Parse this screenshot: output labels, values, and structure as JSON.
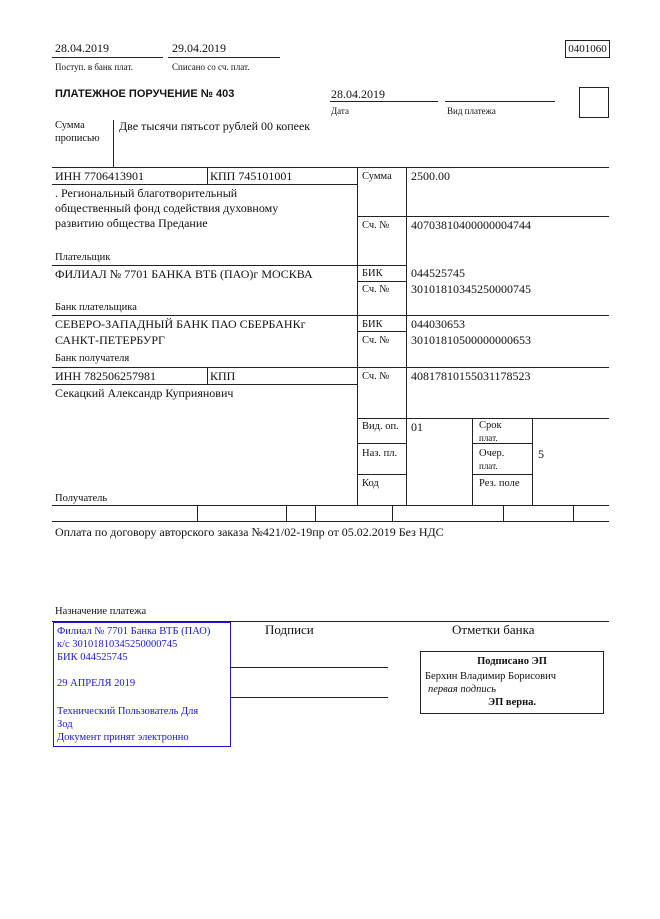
{
  "header": {
    "received_date": "28.04.2019",
    "received_label": "Поступ. в банк плат.",
    "debited_date": "29.04.2019",
    "debited_label": "Списано со сч. плат.",
    "form_code": "0401060"
  },
  "title": "ПЛАТЕЖНОЕ ПОРУЧЕНИЕ № 403",
  "date": {
    "value": "28.04.2019",
    "label": "Дата"
  },
  "payment_type": {
    "value": "",
    "label": "Вид платежа"
  },
  "amount_words": {
    "label_1": "Сумма",
    "label_2": "прописью",
    "value": "Две тысячи пятьсот рублей 00 копеек"
  },
  "payer": {
    "inn": "ИНН 7706413901",
    "kpp": "КПП 745101001",
    "name_1": ". Региональный благотворительный",
    "name_2": "общественный фонд содействия духовному",
    "name_3": "развитию общества Предание",
    "label": "Плательщик",
    "amount_label": "Сумма",
    "amount": "2500.00",
    "account_label": "Сч. №",
    "account": "40703810400000004744"
  },
  "payer_bank": {
    "name": "ФИЛИАЛ № 7701 БАНКА ВТБ (ПАО)г МОСКВА",
    "label": "Банк плательщика",
    "bik_label": "БИК",
    "bik": "044525745",
    "account_label": "Сч. №",
    "account": "30101810345250000745"
  },
  "payee_bank": {
    "name_1": "СЕВЕРО-ЗАПАДНЫЙ БАНК ПАО СБЕРБАНКг",
    "name_2": "САНКТ-ПЕТЕРБУРГ",
    "label": "Банк получателя",
    "bik_label": "БИК",
    "bik": "044030653",
    "account_label": "Сч. №",
    "account": "30101810500000000653"
  },
  "payee": {
    "inn": "ИНН 782506257981",
    "kpp": "КПП",
    "name": "Секацкий Александр Куприянович",
    "label": "Получатель",
    "account_label": "Сч. №",
    "account": "40817810155031178523"
  },
  "codes": {
    "op_type_label": "Вид. оп.",
    "op_type": "01",
    "purpose_code_label": "Наз. пл.",
    "code_label": "Код",
    "term_label_1": "Срок",
    "term_label_2": "плат.",
    "order_label_1": "Очер.",
    "order_label_2": "плат.",
    "order": "5",
    "reserve_label": "Рез. поле"
  },
  "purpose": {
    "text": "Оплата по договору авторского заказа №421/02-19пр от 05.02.2019 Без НДС",
    "label": "Назначение платежа"
  },
  "bank_stamp": {
    "line_1": "Филиал № 7701 Банка ВТБ (ПАО)",
    "line_2": "к/с 30101810345250000745",
    "line_3": "БИК 044525745",
    "date": "29 АПРЕЛЯ 2019",
    "line_5": "Технический Пользователь Для",
    "line_6": "Зод",
    "line_7": "Документ принят электронно",
    "color": "#1a1ad0"
  },
  "signatures_label": "Подписи",
  "bank_marks_label": "Отметки банка",
  "e_signature": {
    "title": "Подписано ЭП",
    "name": "Берхин Владимир Борисович",
    "role": "первая подпись",
    "status": "ЭП верна."
  }
}
